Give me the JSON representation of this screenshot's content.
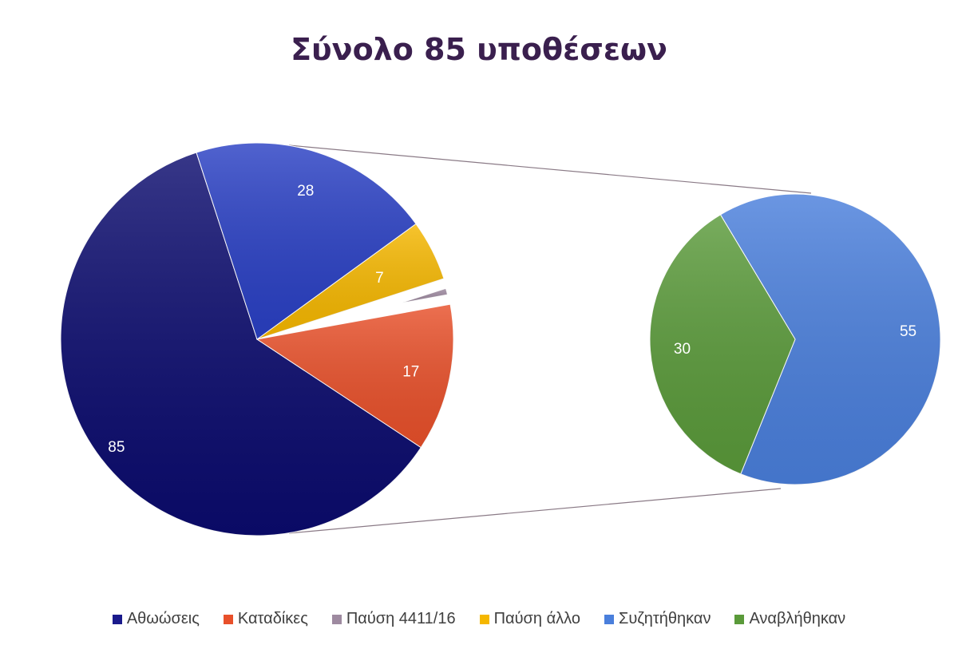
{
  "chart_data": {
    "type": "pie",
    "title": "Σύνολο 85 υποθέσεων",
    "main_pie": {
      "slices": [
        {
          "label": "Αθωώσεις",
          "value": 85,
          "color": "#0b0b6e"
        },
        {
          "label": "Καταδίκες",
          "value": 17,
          "color": "#e8502a"
        },
        {
          "label": "Παύση 4411/16",
          "value": 3,
          "color": "#9e8aa0"
        },
        {
          "label": "Παύση άλλο",
          "value": 7,
          "color": "#f5b700"
        },
        {
          "label": "Αθωώσεις",
          "value": 28,
          "color": "#2a40c4"
        }
      ]
    },
    "secondary_pie": {
      "slices": [
        {
          "label": "Συζητήθηκαν",
          "value": 55,
          "color": "#4a7fdc"
        },
        {
          "label": "Αναβλήθηκαν",
          "value": 30,
          "color": "#5a9a3a"
        }
      ]
    },
    "legend": [
      {
        "label": "Αθωώσεις",
        "color": "#1a1a8c"
      },
      {
        "label": "Καταδίκες",
        "color": "#e8502a"
      },
      {
        "label": "Παύση 4411/16",
        "color": "#9e8aa0"
      },
      {
        "label": "Παύση άλλο",
        "color": "#f5b700"
      },
      {
        "label": "Συζητήθηκαν",
        "color": "#4a7fdc"
      },
      {
        "label": "Αναβλήθηκαν",
        "color": "#5a9a3a"
      }
    ],
    "legend_position": "bottom"
  }
}
